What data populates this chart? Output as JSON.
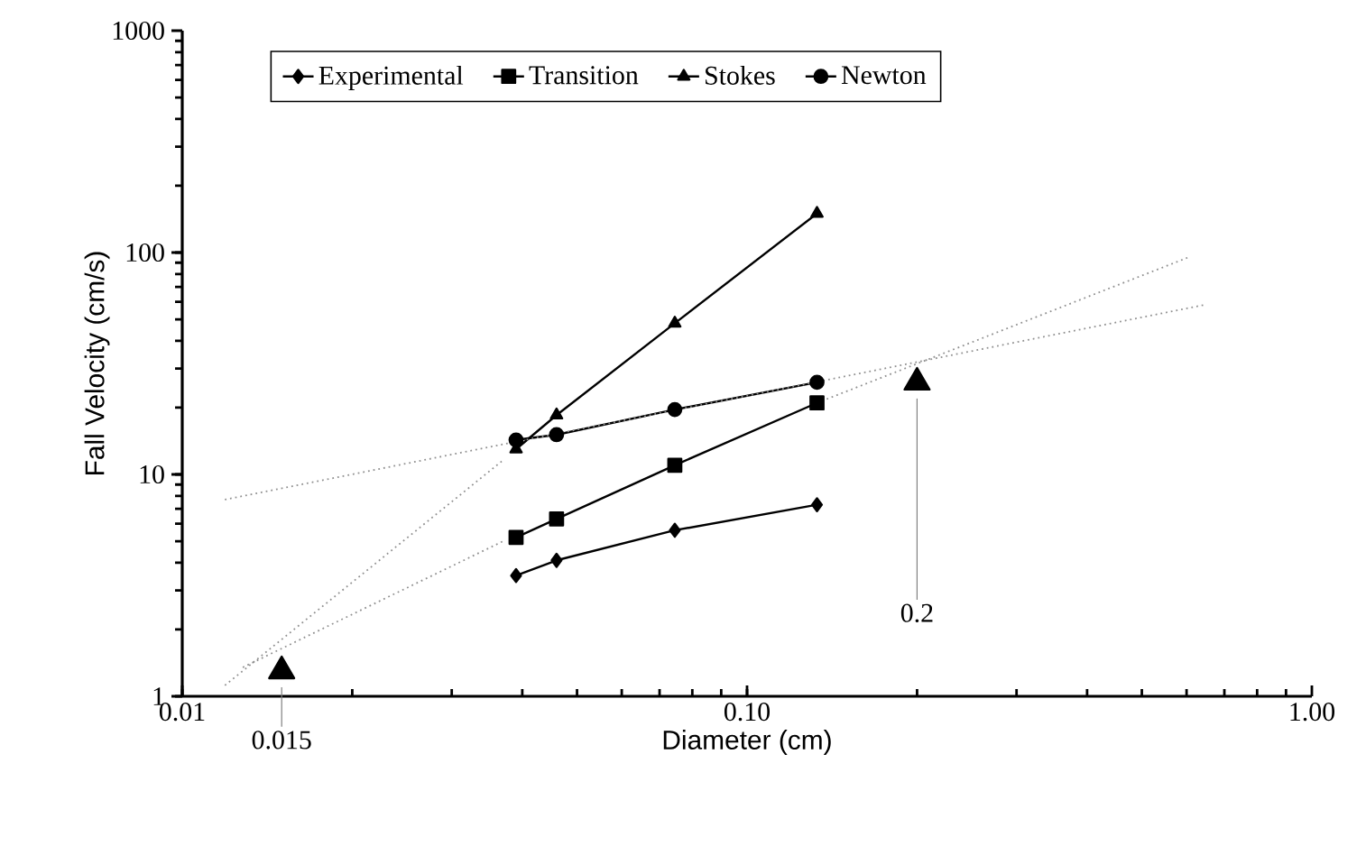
{
  "chart_data": {
    "type": "line",
    "xlabel": "Diameter (cm)",
    "ylabel": "Fall Velocity (cm/s)",
    "log": "xy",
    "legend": "top",
    "grid": false,
    "x": [
      0.039,
      0.046,
      0.0745,
      0.133
    ],
    "xlim": [
      0.01,
      1
    ],
    "ylim": [
      1,
      1000
    ],
    "xticks": [
      0.01,
      {
        "value": 0.1,
        "label": "0.10"
      },
      {
        "value": 1,
        "label": "1.00"
      }
    ],
    "yticks": [
      1,
      10,
      100,
      1000
    ],
    "series": [
      {
        "name": "Experimental",
        "color": "#000000",
        "marker": "diamond",
        "values": [
          3.5,
          4.1,
          5.6,
          7.3
        ]
      },
      {
        "name": "Transition",
        "color": "#000000",
        "marker": "square",
        "values": [
          5.2,
          6.3,
          11,
          21
        ]
      },
      {
        "name": "Stokes",
        "color": "#000000",
        "marker": "triangle",
        "values": [
          13,
          18.5,
          48,
          150
        ]
      },
      {
        "name": "Newton",
        "color": "#000000",
        "marker": "circle",
        "values": [
          14.3,
          15.1,
          19.6,
          26
        ]
      },
      {
        "type": "line",
        "color": "#909090",
        "marker": "none",
        "line_style": "dotted",
        "x": [
          0.0119,
          0.037
        ],
        "values": [
          1.12,
          11.6
        ]
      },
      {
        "type": "line",
        "color": "#909090",
        "marker": "none",
        "line_style": "dotted",
        "x": [
          0.0128,
          0.037
        ],
        "values": [
          1.35,
          5.0
        ]
      },
      {
        "type": "line",
        "color": "#909090",
        "marker": "none",
        "line_style": "dotted",
        "x": [
          0.133,
          0.61
        ],
        "values": [
          21,
          96
        ]
      },
      {
        "type": "line",
        "color": "#909090",
        "marker": "none",
        "line_style": "dotted",
        "x": [
          0.0119,
          0.643
        ],
        "values": [
          7.7,
          58
        ]
      },
      {
        "type": "scatter",
        "color": "#000000",
        "marker": "triangle",
        "x": [
          0.015,
          0.2
        ],
        "values": [
          1.3,
          26
        ]
      }
    ],
    "annotations": [
      {
        "text": "0.015",
        "x": 0.015,
        "y": 1.3
      },
      {
        "text": "0.2",
        "x": 0.2,
        "y": 26
      }
    ]
  }
}
